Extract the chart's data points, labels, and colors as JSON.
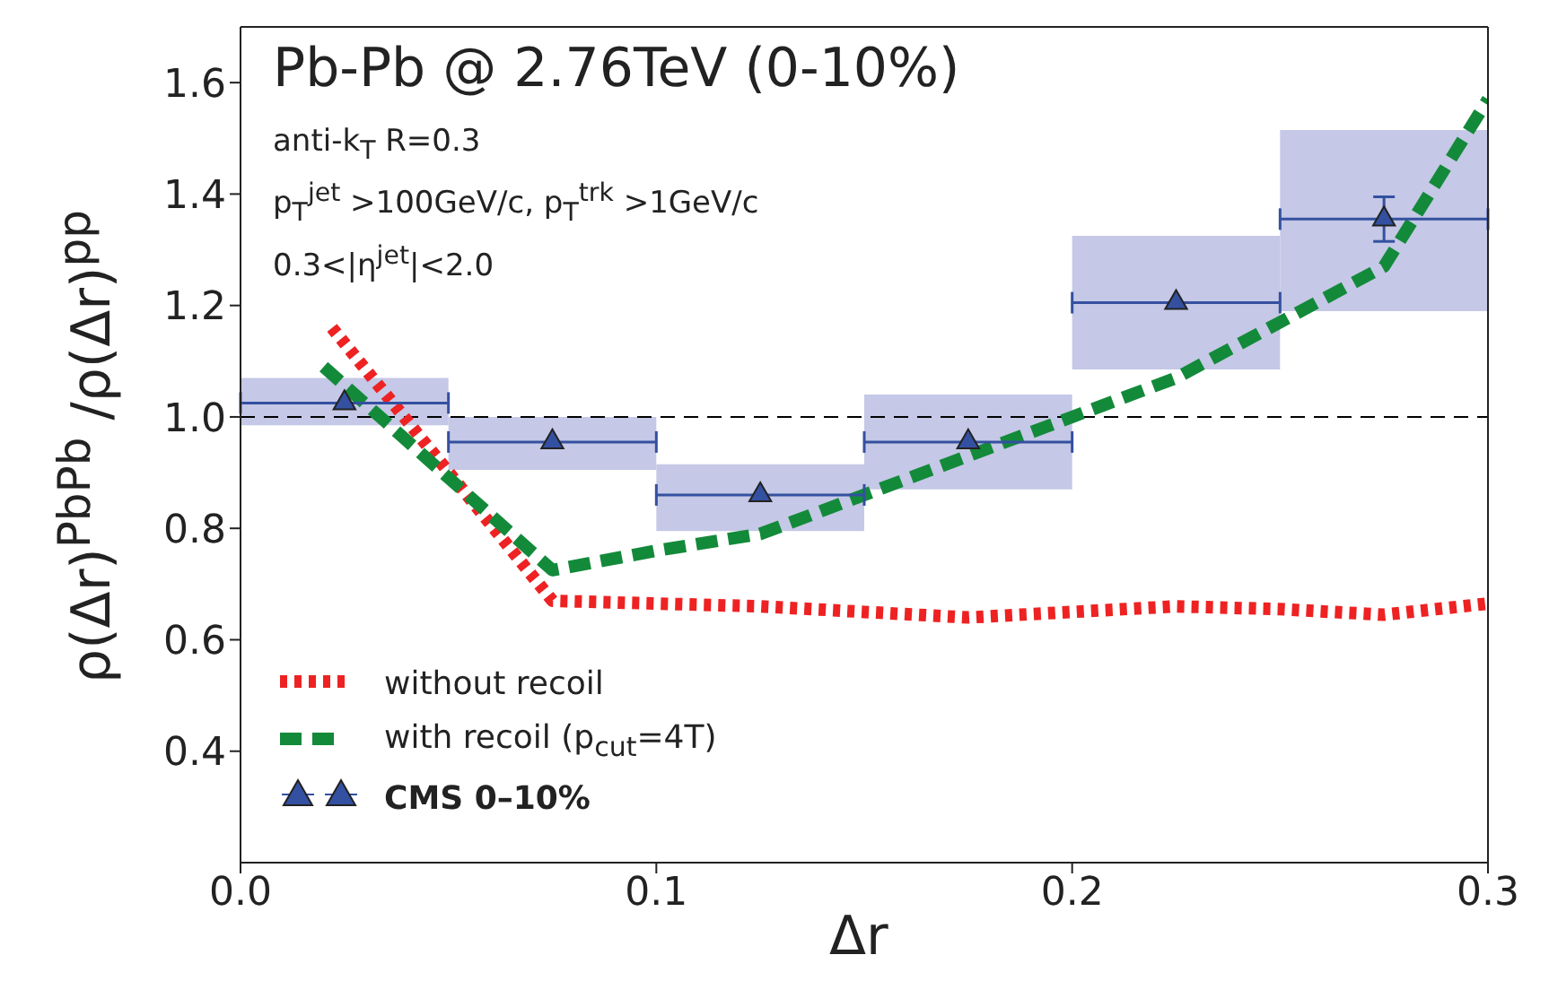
{
  "chart_data": {
    "type": "line",
    "title": "Pb-Pb @ 2.76TeV (0-10%)",
    "xlabel": "Δr",
    "ylabel": "ρ(Δr)$^{PbPb}$ /ρ(Δr)$^{pp}$",
    "annotations": [
      "anti-k$_{T}$ R=0.3",
      "p$_{T}$$^{jet}$ >100GeV/c, p$_{T}$$^{trk}$ >1GeV/c",
      "0.3<|η$^{jet}$|<2.0"
    ],
    "xlim": [
      0,
      0.3
    ],
    "xticks": [
      {
        "value": 0,
        "label": "0.0"
      },
      0.1,
      0.2,
      0.3
    ],
    "ylim": [
      0.2,
      1.7
    ],
    "yticks": [
      0.4,
      0.6,
      0.8,
      {
        "value": 1,
        "label": "1.0"
      },
      1.2,
      1.4,
      1.6
    ],
    "grid": false,
    "legend": "bottom left",
    "ref_lines": [
      {
        "axis": "y",
        "value": 1,
        "color": "#000000",
        "line_style": "dashed"
      }
    ],
    "series": [
      {
        "type": "bar",
        "color": "#c5c8e6",
        "x": [
          0.025,
          0.075,
          0.125,
          0.175,
          0.225,
          0.275
        ],
        "base": [
          0.985,
          0.905,
          0.795,
          0.87,
          1.085,
          1.19
        ],
        "values": [
          0.085,
          0.095,
          0.12,
          0.17,
          0.24,
          0.325
        ]
      },
      {
        "name": "without recoil",
        "color": "#ee2222",
        "line_style": "dotted",
        "marker": "none",
        "x": [
          0.022,
          0.075,
          0.1,
          0.125,
          0.15,
          0.175,
          0.2,
          0.225,
          0.25,
          0.275,
          0.3
        ],
        "values": [
          1.16,
          0.67,
          0.665,
          0.66,
          0.65,
          0.64,
          0.65,
          0.66,
          0.655,
          0.645,
          0.665
        ]
      },
      {
        "name": "with recoil (p$_{cut}$=4T)",
        "color": "#138a3a",
        "line_style": "dashed",
        "marker": "none",
        "x": [
          0.02,
          0.075,
          0.1,
          0.125,
          0.15,
          0.175,
          0.2,
          0.225,
          0.25,
          0.275,
          0.3
        ],
        "values": [
          1.09,
          0.725,
          0.76,
          0.79,
          0.86,
          0.93,
          1.0,
          1.07,
          1.17,
          1.27,
          1.57
        ]
      },
      {
        "type": "scatter",
        "name": "CMS 0–10%",
        "color": "#3450a0",
        "marker": "triangle",
        "x": [
          0.025,
          0.075,
          0.125,
          0.175,
          0.225,
          0.275
        ],
        "values": [
          1.025,
          0.955,
          0.86,
          0.955,
          1.205,
          1.355
        ],
        "errors": [
          null,
          null,
          null,
          null,
          null,
          0.04
        ],
        "xerrors": [
          0.025,
          0.025,
          0.025,
          0.025,
          0.025,
          0.025
        ]
      }
    ]
  }
}
